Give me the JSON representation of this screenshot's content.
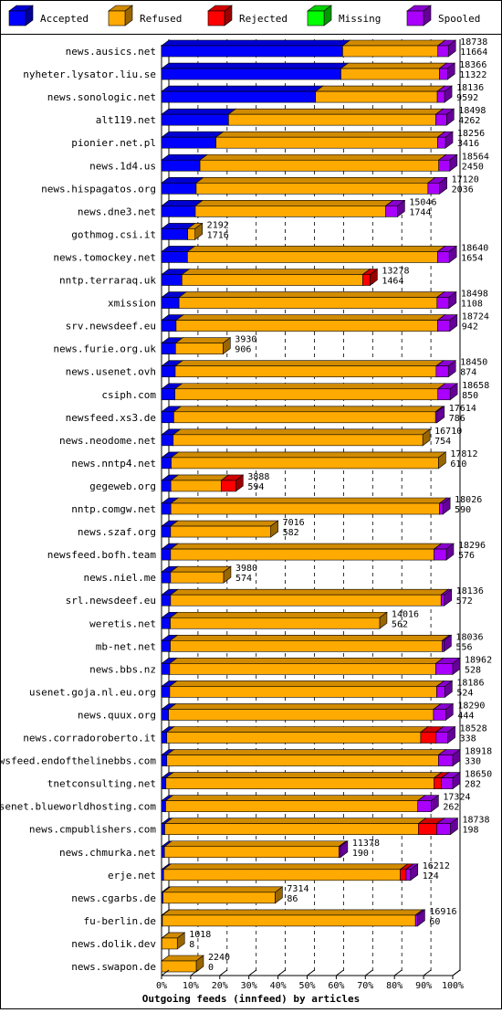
{
  "chart_data": {
    "type": "bar",
    "orientation": "horizontal",
    "stacked": true,
    "units": "percent",
    "xlabel": "Outgoing feeds (innfeed) by articles",
    "xlim": [
      0,
      100
    ],
    "xticks": [
      "0%",
      "10%",
      "20%",
      "30%",
      "40%",
      "50%",
      "60%",
      "70%",
      "80%",
      "90%",
      "100%"
    ],
    "grid": true,
    "legend_position": "top",
    "series": [
      {
        "name": "Accepted",
        "color": "#0000ff"
      },
      {
        "name": "Refused",
        "color": "#ffaa00"
      },
      {
        "name": "Rejected",
        "color": "#ff0000"
      },
      {
        "name": "Missing",
        "color": "#00ff00"
      },
      {
        "name": "Spooled",
        "color": "#aa00ff"
      }
    ],
    "rows": [
      {
        "label": "news.ausics.net",
        "total": "18738",
        "accepted": "11664",
        "segments": [
          62.2,
          32.7,
          0,
          0,
          3.6
        ]
      },
      {
        "label": "nyheter.lysator.liu.se",
        "total": "18366",
        "accepted": "11322",
        "segments": [
          61.6,
          33.8,
          0,
          0,
          2.8
        ]
      },
      {
        "label": "news.sonologic.net",
        "total": "18136",
        "accepted": "9592",
        "segments": [
          52.9,
          41.8,
          0,
          0,
          2.5
        ]
      },
      {
        "label": "alt119.net",
        "total": "18498",
        "accepted": "4262",
        "segments": [
          23.0,
          71.2,
          0,
          0,
          3.7
        ]
      },
      {
        "label": "pionier.net.pl",
        "total": "18256",
        "accepted": "3416",
        "segments": [
          18.7,
          76.1,
          0,
          0,
          2.7
        ]
      },
      {
        "label": "news.1d4.us",
        "total": "18564",
        "accepted": "2450",
        "segments": [
          13.2,
          82.0,
          0,
          0,
          3.8
        ]
      },
      {
        "label": "news.hispagatos.org",
        "total": "17120",
        "accepted": "2036",
        "segments": [
          11.9,
          79.6,
          0,
          0,
          4.0
        ]
      },
      {
        "label": "news.dne3.net",
        "total": "15046",
        "accepted": "1744",
        "segments": [
          11.6,
          65.4,
          0,
          0,
          4.0
        ]
      },
      {
        "label": "gothmog.csi.it",
        "total": "2192",
        "accepted": "1716",
        "segments": [
          9.0,
          2.5,
          0,
          0,
          0
        ]
      },
      {
        "label": "news.tomockey.net",
        "total": "18640",
        "accepted": "1654",
        "segments": [
          8.9,
          85.9,
          0,
          0,
          4.0
        ]
      },
      {
        "label": "nntp.terraraq.uk",
        "total": "13278",
        "accepted": "1464",
        "segments": [
          7.0,
          62.1,
          2.5,
          0,
          0
        ]
      },
      {
        "label": "xmission",
        "total": "18498",
        "accepted": "1108",
        "segments": [
          6.0,
          88.6,
          0,
          0,
          4.1
        ]
      },
      {
        "label": "srv.newsdeef.eu",
        "total": "18724",
        "accepted": "942",
        "segments": [
          5.0,
          89.8,
          0,
          0,
          4.2
        ]
      },
      {
        "label": "news.furie.org.uk",
        "total": "3930",
        "accepted": "906",
        "segments": [
          4.8,
          16.3,
          0,
          0,
          0
        ]
      },
      {
        "label": "news.usenet.ovh",
        "total": "18450",
        "accepted": "874",
        "segments": [
          4.7,
          89.6,
          0,
          0,
          4.2
        ]
      },
      {
        "label": "csiph.com",
        "total": "18658",
        "accepted": "850",
        "segments": [
          4.6,
          90.3,
          0,
          0,
          4.2
        ]
      },
      {
        "label": "newsfeed.xs3.de",
        "total": "17614",
        "accepted": "786",
        "segments": [
          4.2,
          89.9,
          0,
          0,
          0.5
        ]
      },
      {
        "label": "news.neodome.net",
        "total": "16710",
        "accepted": "754",
        "segments": [
          4.0,
          85.7,
          0,
          0,
          0
        ]
      },
      {
        "label": "news.nntp4.net",
        "total": "17812",
        "accepted": "610",
        "segments": [
          3.3,
          91.8,
          0,
          0,
          0
        ]
      },
      {
        "label": "gegeweb.org",
        "total": "3888",
        "accepted": "594",
        "segments": [
          3.2,
          17.3,
          5.0,
          0,
          0
        ]
      },
      {
        "label": "nntp.comgw.net",
        "total": "18026",
        "accepted": "590",
        "segments": [
          3.2,
          92.3,
          0,
          0,
          1.1
        ]
      },
      {
        "label": "news.szaf.org",
        "total": "7016",
        "accepted": "582",
        "segments": [
          3.1,
          34.4,
          0,
          0,
          0
        ]
      },
      {
        "label": "newsfeed.bofh.team",
        "total": "18296",
        "accepted": "576",
        "segments": [
          3.1,
          90.5,
          0,
          0,
          4.2
        ]
      },
      {
        "label": "news.niel.me",
        "total": "3980",
        "accepted": "574",
        "segments": [
          3.1,
          18.2,
          0,
          0,
          0
        ]
      },
      {
        "label": "srl.newsdeef.eu",
        "total": "18136",
        "accepted": "572",
        "segments": [
          3.1,
          92.9,
          0,
          0,
          1.1
        ]
      },
      {
        "label": "weretis.net",
        "total": "14016",
        "accepted": "562",
        "segments": [
          3.0,
          71.9,
          0,
          0,
          0
        ]
      },
      {
        "label": "mb-net.net",
        "total": "18036",
        "accepted": "556",
        "segments": [
          3.0,
          93.4,
          0,
          0,
          0.6
        ]
      },
      {
        "label": "news.bbs.nz",
        "total": "18962",
        "accepted": "528",
        "segments": [
          2.8,
          91.4,
          0,
          0,
          5.8
        ]
      },
      {
        "label": "usenet.goja.nl.eu.org",
        "total": "18186",
        "accepted": "524",
        "segments": [
          2.8,
          91.7,
          0,
          0,
          2.8
        ]
      },
      {
        "label": "news.quux.org",
        "total": "18290",
        "accepted": "444",
        "segments": [
          2.4,
          91.0,
          0,
          0,
          4.2
        ]
      },
      {
        "label": "news.corradoroberto.it",
        "total": "18528",
        "accepted": "338",
        "segments": [
          1.8,
          87.2,
          5.3,
          0,
          4.0
        ]
      },
      {
        "label": "newsfeed.endofthelinebbs.com",
        "total": "18918",
        "accepted": "330",
        "segments": [
          1.8,
          93.3,
          0,
          0,
          4.9
        ]
      },
      {
        "label": "tnetconsulting.net",
        "total": "18650",
        "accepted": "282",
        "segments": [
          1.5,
          92.1,
          2.5,
          0,
          3.9
        ]
      },
      {
        "label": "usenet.blueworldhosting.com",
        "total": "17324",
        "accepted": "262",
        "segments": [
          1.4,
          86.6,
          0,
          0,
          4.6
        ]
      },
      {
        "label": "news.cmpublishers.com",
        "total": "18738",
        "accepted": "198",
        "segments": [
          1.1,
          87.1,
          6.3,
          0,
          4.7
        ]
      },
      {
        "label": "news.chmurka.net",
        "total": "11378",
        "accepted": "190",
        "segments": [
          1.0,
          59.9,
          0,
          0,
          0.5
        ]
      },
      {
        "label": "erje.net",
        "total": "16212",
        "accepted": "124",
        "segments": [
          0.7,
          81.3,
          2.0,
          0,
          1.5
        ]
      },
      {
        "label": "news.cgarbs.de",
        "total": "7314",
        "accepted": "86",
        "segments": [
          0.5,
          38.5,
          0,
          0,
          0
        ]
      },
      {
        "label": "fu-berlin.de",
        "total": "16916",
        "accepted": "60",
        "segments": [
          0.3,
          86.9,
          0,
          0,
          0.7
        ]
      },
      {
        "label": "news.dolik.dev",
        "total": "1018",
        "accepted": "8",
        "segments": [
          0.1,
          5.3,
          0,
          0,
          0
        ]
      },
      {
        "label": "news.swapon.de",
        "total": "2240",
        "accepted": "0",
        "segments": [
          0,
          11.9,
          0,
          0,
          0
        ]
      }
    ]
  }
}
